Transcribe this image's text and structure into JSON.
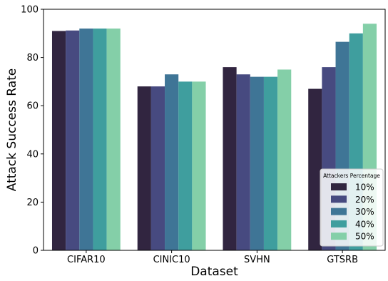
{
  "chart_data": {
    "type": "bar",
    "title": "",
    "xlabel": "Dataset",
    "ylabel": "Attack Success Rate",
    "categories": [
      "CIFAR10",
      "CINIC10",
      "SVHN",
      "GTSRB"
    ],
    "ylim": [
      0,
      100
    ],
    "yticks": [
      0,
      20,
      40,
      60,
      80,
      100
    ],
    "grid": false,
    "legend": {
      "title": "Attackers Percentage",
      "position": "lower-right"
    },
    "series": [
      {
        "name": "10%",
        "color": "#312540",
        "values": [
          91,
          68,
          76,
          67
        ]
      },
      {
        "name": "20%",
        "color": "#474a80",
        "values": [
          91.2,
          68,
          73,
          76
        ]
      },
      {
        "name": "30%",
        "color": "#3f7596",
        "values": [
          92,
          73,
          72,
          86.5
        ]
      },
      {
        "name": "40%",
        "color": "#3f9e9e",
        "values": [
          92,
          70,
          72,
          90
        ]
      },
      {
        "name": "50%",
        "color": "#84cfa8",
        "values": [
          92,
          70,
          75,
          94
        ]
      }
    ]
  }
}
